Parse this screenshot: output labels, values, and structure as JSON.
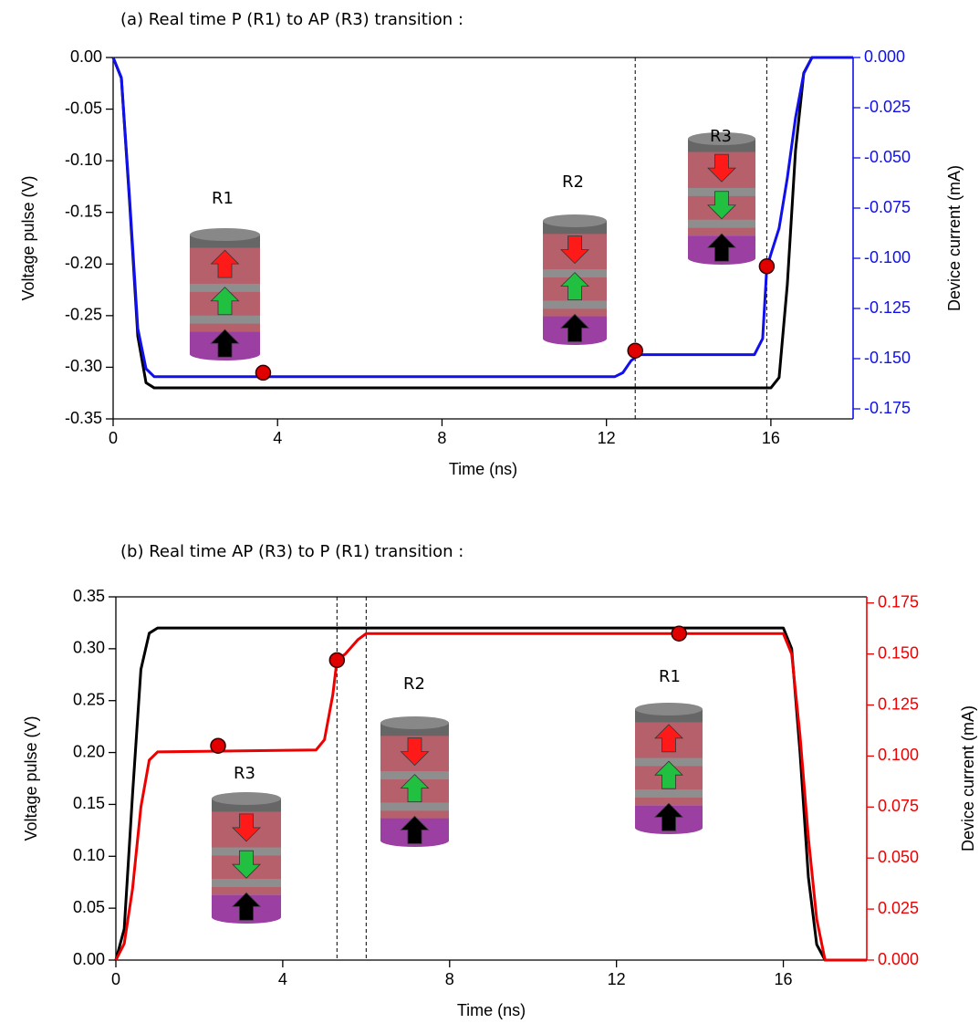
{
  "chart_data": [
    {
      "type": "line",
      "title": "(a) Real time P (R1) to AP (R3) transition :",
      "xlabel": "Time (ns)",
      "ylabel": "Voltage pulse (V)",
      "y2label": "Device current (mA)",
      "xlim": [
        0,
        18
      ],
      "xticks": [
        0,
        4,
        8,
        12,
        16
      ],
      "ylim": [
        -0.35,
        0
      ],
      "yticks": [
        {
          "value": 0,
          "label": "0.00"
        },
        {
          "value": -0.05,
          "label": "-0.05"
        },
        {
          "value": -0.1,
          "label": "-0.10"
        },
        {
          "value": -0.15,
          "label": "-0.15"
        },
        {
          "value": -0.2,
          "label": "-0.20"
        },
        {
          "value": -0.25,
          "label": "-0.25"
        },
        {
          "value": -0.3,
          "label": "-0.30"
        },
        {
          "value": -0.35,
          "label": "-0.35"
        }
      ],
      "y2lim": [
        -0.18,
        0
      ],
      "y2ticks": [
        {
          "value": 0,
          "label": "0.000"
        },
        {
          "value": -0.025,
          "label": "-0.025"
        },
        {
          "value": -0.05,
          "label": "-0.050"
        },
        {
          "value": -0.075,
          "label": "-0.075"
        },
        {
          "value": -0.1,
          "label": "-0.100"
        },
        {
          "value": -0.125,
          "label": "-0.125"
        },
        {
          "value": -0.15,
          "label": "-0.150"
        },
        {
          "value": -0.175,
          "label": "-0.175"
        }
      ],
      "y2color": "#1010ee",
      "series": [
        {
          "color": "#000000",
          "x": [
            0,
            0.2,
            0.4,
            0.6,
            0.8,
            1.0,
            16.0,
            16.2,
            16.4,
            16.6,
            16.8,
            17.0,
            18
          ],
          "values": [
            0,
            -0.02,
            -0.14,
            -0.27,
            -0.315,
            -0.32,
            -0.32,
            -0.31,
            -0.22,
            -0.09,
            -0.015,
            0,
            0
          ]
        },
        {
          "color": "#1010ee",
          "axis": "y2",
          "x": [
            0,
            0.2,
            0.4,
            0.6,
            0.8,
            1.0,
            12.2,
            12.4,
            12.6,
            12.8,
            13.0,
            15.6,
            15.8,
            15.9,
            16.0,
            16.2,
            16.4,
            16.6,
            16.8,
            17.0,
            18
          ],
          "values": [
            0,
            -0.01,
            -0.07,
            -0.135,
            -0.155,
            -0.159,
            -0.159,
            -0.157,
            -0.151,
            -0.148,
            -0.148,
            -0.148,
            -0.14,
            -0.105,
            -0.098,
            -0.085,
            -0.06,
            -0.03,
            -0.008,
            0,
            0
          ]
        }
      ],
      "markers": {
        "color": "#e00000",
        "axis": "y2",
        "x": [
          3.65,
          12.7,
          15.9
        ],
        "values": [
          -0.157,
          -0.146,
          -0.104
        ]
      },
      "vlines": [
        12.7,
        15.9
      ],
      "annotations": [
        "R1",
        "R2",
        "R3"
      ]
    },
    {
      "type": "line",
      "title": "(b) Real time AP (R3) to P (R1) transition :",
      "xlabel": "Time (ns)",
      "ylabel": "Voltage pulse (V)",
      "y2label": "Device current (mA)",
      "xlim": [
        0,
        18
      ],
      "xticks": [
        0,
        4,
        8,
        12,
        16
      ],
      "ylim": [
        0,
        0.35
      ],
      "yticks": [
        {
          "value": 0,
          "label": "0.00"
        },
        {
          "value": 0.05,
          "label": "0.05"
        },
        {
          "value": 0.1,
          "label": "0.10"
        },
        {
          "value": 0.15,
          "label": "0.15"
        },
        {
          "value": 0.2,
          "label": "0.20"
        },
        {
          "value": 0.25,
          "label": "0.25"
        },
        {
          "value": 0.3,
          "label": "0.30"
        },
        {
          "value": 0.35,
          "label": "0.35"
        }
      ],
      "y2lim": [
        0,
        0.178
      ],
      "y2ticks": [
        {
          "value": 0,
          "label": "0.000"
        },
        {
          "value": 0.025,
          "label": "0.025"
        },
        {
          "value": 0.05,
          "label": "0.050"
        },
        {
          "value": 0.075,
          "label": "0.075"
        },
        {
          "value": 0.1,
          "label": "0.100"
        },
        {
          "value": 0.125,
          "label": "0.125"
        },
        {
          "value": 0.15,
          "label": "0.150"
        },
        {
          "value": 0.175,
          "label": "0.175"
        }
      ],
      "y2color": "#ee0000",
      "series": [
        {
          "color": "#000000",
          "x": [
            0,
            0.2,
            0.4,
            0.6,
            0.8,
            1.0,
            16.0,
            16.2,
            16.4,
            16.6,
            16.8,
            17.0,
            18
          ],
          "values": [
            0,
            0.03,
            0.16,
            0.28,
            0.315,
            0.32,
            0.32,
            0.3,
            0.2,
            0.08,
            0.015,
            0,
            0
          ]
        },
        {
          "color": "#ee0000",
          "axis": "y2",
          "x": [
            0,
            0.2,
            0.4,
            0.6,
            0.8,
            1.0,
            4.8,
            5.0,
            5.2,
            5.3,
            5.5,
            5.8,
            6.0,
            16.0,
            16.2,
            16.4,
            16.6,
            16.8,
            17.0,
            18
          ],
          "values": [
            0,
            0.008,
            0.035,
            0.075,
            0.098,
            0.102,
            0.103,
            0.108,
            0.13,
            0.147,
            0.15,
            0.157,
            0.16,
            0.16,
            0.15,
            0.11,
            0.06,
            0.02,
            0,
            0
          ]
        }
      ],
      "markers": {
        "color": "#e00000",
        "axis": "y2",
        "x": [
          2.45,
          5.3,
          13.5
        ],
        "values": [
          0.105,
          0.147,
          0.16
        ]
      },
      "vlines": [
        5.3,
        6.0
      ],
      "annotations": [
        "R3",
        "R2",
        "R1"
      ]
    }
  ]
}
